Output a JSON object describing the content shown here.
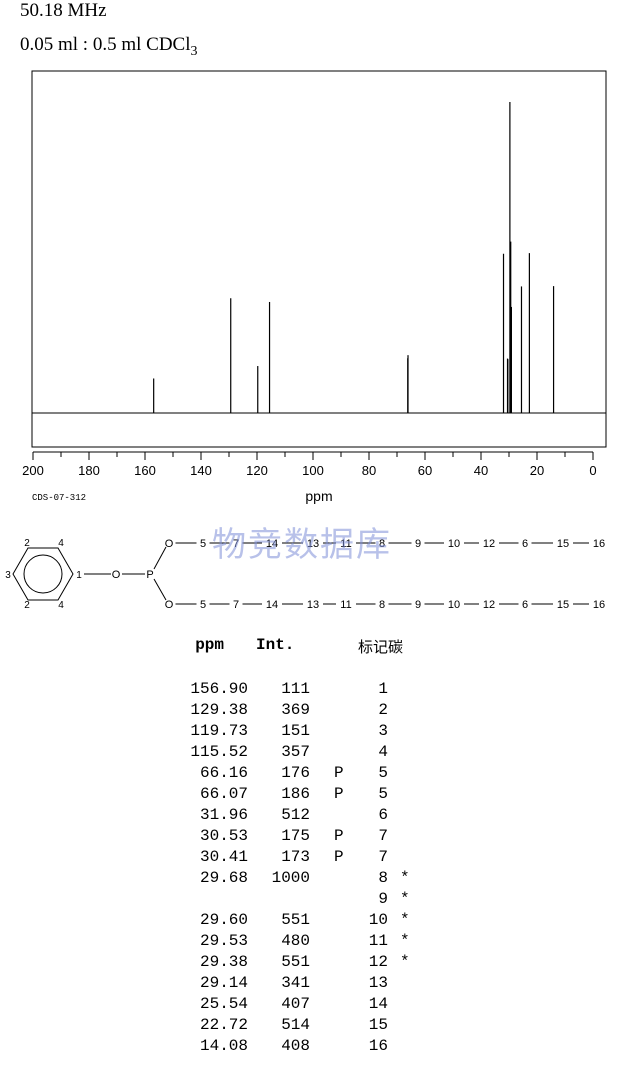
{
  "header": {
    "frequency": "50.18 MHz",
    "sample_prefix": "0.05 ml : 0.5 ml CDCl",
    "sample_subscript": "3"
  },
  "catalog_code": "CDS-07-312",
  "watermark": "物竞数据库",
  "chart_data": {
    "type": "spectrum",
    "xlabel": "ppm",
    "xlim": [
      200,
      0
    ],
    "x_ticks": [
      200,
      180,
      160,
      140,
      120,
      100,
      80,
      60,
      40,
      20,
      0
    ],
    "series": [
      {
        "x": [
          156.9,
          129.38,
          119.73,
          115.52,
          66.16,
          66.07,
          31.96,
          30.53,
          30.41,
          29.68,
          29.6,
          29.53,
          29.38,
          29.14,
          25.54,
          22.72,
          14.08
        ],
        "y": [
          111,
          369,
          151,
          357,
          176,
          186,
          512,
          175,
          173,
          1000,
          551,
          480,
          551,
          341,
          407,
          514,
          408
        ]
      }
    ]
  },
  "structure": {
    "ring_atoms": [
      "2",
      "4",
      "3",
      "1",
      "2",
      "4"
    ],
    "o_label": "O",
    "p_label": "P",
    "chain_upper": [
      "O",
      "5",
      "7",
      "14",
      "13",
      "11",
      "8",
      "9",
      "10",
      "12",
      "6",
      "15",
      "16"
    ],
    "chain_lower": [
      "O",
      "5",
      "7",
      "14",
      "13",
      "11",
      "8",
      "9",
      "10",
      "12",
      "6",
      "15",
      "16"
    ]
  },
  "table": {
    "headers": {
      "ppm": "ppm",
      "int": "Int.",
      "carbon": "标记碳"
    },
    "rows": [
      {
        "ppm": "156.90",
        "int": "111",
        "p": "",
        "carbon": "1",
        "star": ""
      },
      {
        "ppm": "129.38",
        "int": "369",
        "p": "",
        "carbon": "2",
        "star": ""
      },
      {
        "ppm": "119.73",
        "int": "151",
        "p": "",
        "carbon": "3",
        "star": ""
      },
      {
        "ppm": "115.52",
        "int": "357",
        "p": "",
        "carbon": "4",
        "star": ""
      },
      {
        "ppm": "66.16",
        "int": "176",
        "p": "P",
        "carbon": "5",
        "star": ""
      },
      {
        "ppm": "66.07",
        "int": "186",
        "p": "P",
        "carbon": "5",
        "star": ""
      },
      {
        "ppm": "31.96",
        "int": "512",
        "p": "",
        "carbon": "6",
        "star": ""
      },
      {
        "ppm": "30.53",
        "int": "175",
        "p": "P",
        "carbon": "7",
        "star": ""
      },
      {
        "ppm": "30.41",
        "int": "173",
        "p": "P",
        "carbon": "7",
        "star": ""
      },
      {
        "ppm": "29.68",
        "int": "1000",
        "p": "",
        "carbon": "8",
        "star": "*"
      },
      {
        "ppm": "",
        "int": "",
        "p": "",
        "carbon": "9",
        "star": "*"
      },
      {
        "ppm": "29.60",
        "int": "551",
        "p": "",
        "carbon": "10",
        "star": "*"
      },
      {
        "ppm": "29.53",
        "int": "480",
        "p": "",
        "carbon": "11",
        "star": "*"
      },
      {
        "ppm": "29.38",
        "int": "551",
        "p": "",
        "carbon": "12",
        "star": "*"
      },
      {
        "ppm": "29.14",
        "int": "341",
        "p": "",
        "carbon": "13",
        "star": ""
      },
      {
        "ppm": "25.54",
        "int": "407",
        "p": "",
        "carbon": "14",
        "star": ""
      },
      {
        "ppm": "22.72",
        "int": "514",
        "p": "",
        "carbon": "15",
        "star": ""
      },
      {
        "ppm": "14.08",
        "int": "408",
        "p": "",
        "carbon": "16",
        "star": ""
      }
    ]
  }
}
